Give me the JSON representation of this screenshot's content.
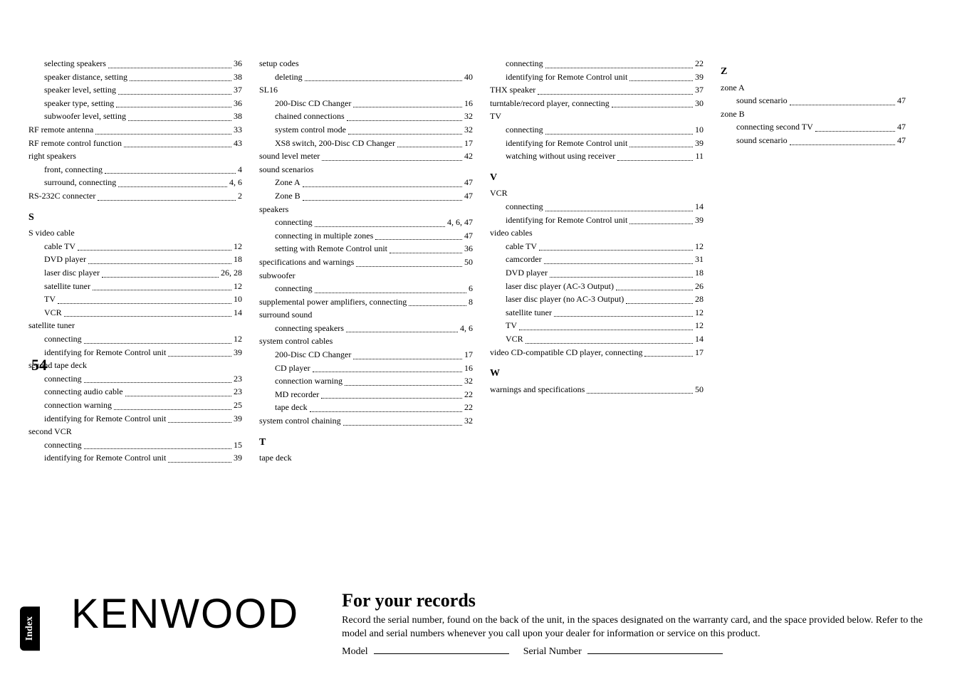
{
  "pageNumber": "54",
  "sideTab": "Index",
  "columns": [
    [
      {
        "lvl": 2,
        "text": "selecting speakers",
        "page": "36"
      },
      {
        "lvl": 2,
        "text": "speaker distance, setting",
        "page": "38"
      },
      {
        "lvl": 2,
        "text": "speaker level, setting",
        "page": "37"
      },
      {
        "lvl": 2,
        "text": "speaker type, setting",
        "page": "36"
      },
      {
        "lvl": 2,
        "text": "subwoofer level, setting",
        "page": "38"
      },
      {
        "lvl": 1,
        "text": "RF remote antenna",
        "page": "33"
      },
      {
        "lvl": 1,
        "text": "RF remote control function",
        "page": "43"
      },
      {
        "lvl": 1,
        "text": "right speakers",
        "noPage": true
      },
      {
        "lvl": 2,
        "text": "front, connecting",
        "page": "4"
      },
      {
        "lvl": 2,
        "text": "surround, connecting",
        "page": "4, 6"
      },
      {
        "lvl": 1,
        "text": "RS-232C connecter",
        "page": "2"
      },
      {
        "letter": "S"
      },
      {
        "lvl": 1,
        "text": "S video cable",
        "noPage": true
      },
      {
        "lvl": 2,
        "text": "cable TV",
        "page": "12"
      },
      {
        "lvl": 2,
        "text": "DVD player",
        "page": "18"
      },
      {
        "lvl": 2,
        "text": "laser disc player",
        "page": "26, 28"
      },
      {
        "lvl": 2,
        "text": "satellite tuner",
        "page": "12"
      },
      {
        "lvl": 2,
        "text": "TV",
        "page": "10"
      },
      {
        "lvl": 2,
        "text": "VCR",
        "page": "14"
      },
      {
        "lvl": 1,
        "text": "satellite tuner",
        "noPage": true
      },
      {
        "lvl": 2,
        "text": "connecting",
        "page": "12"
      },
      {
        "lvl": 2,
        "text": "identifying for Remote Control unit",
        "page": "39"
      },
      {
        "lvl": 1,
        "text": "second tape deck",
        "noPage": true
      },
      {
        "lvl": 2,
        "text": "connecting",
        "page": "23"
      },
      {
        "lvl": 2,
        "text": "connecting audio cable",
        "page": "23"
      },
      {
        "lvl": 2,
        "text": "connection warning",
        "page": "25"
      },
      {
        "lvl": 2,
        "text": "identifying for Remote Control unit",
        "page": "39"
      },
      {
        "lvl": 1,
        "text": "second VCR",
        "noPage": true
      },
      {
        "lvl": 2,
        "text": "connecting",
        "page": "15"
      },
      {
        "lvl": 2,
        "text": "identifying for Remote Control unit",
        "page": "39"
      }
    ],
    [
      {
        "lvl": 1,
        "text": "setup codes",
        "noPage": true
      },
      {
        "lvl": 2,
        "text": "deleting",
        "page": "40"
      },
      {
        "lvl": 1,
        "text": "SL16",
        "noPage": true
      },
      {
        "lvl": 2,
        "text": "200-Disc CD Changer",
        "page": "16"
      },
      {
        "lvl": 2,
        "text": "chained connections",
        "page": "32"
      },
      {
        "lvl": 2,
        "text": "system control mode",
        "page": "32"
      },
      {
        "lvl": 2,
        "text": "XS8 switch, 200-Disc CD Changer",
        "page": "17"
      },
      {
        "lvl": 1,
        "text": "sound level meter",
        "page": "42"
      },
      {
        "lvl": 1,
        "text": "sound scenarios",
        "noPage": true
      },
      {
        "lvl": 2,
        "text": "Zone A",
        "page": "47"
      },
      {
        "lvl": 2,
        "text": "Zone B",
        "page": "47"
      },
      {
        "lvl": 1,
        "text": "speakers",
        "noPage": true
      },
      {
        "lvl": 2,
        "text": "connecting",
        "page": "4, 6, 47"
      },
      {
        "lvl": 2,
        "text": "connecting in multiple zones",
        "page": "47"
      },
      {
        "lvl": 2,
        "text": "setting with Remote Control unit",
        "page": "36"
      },
      {
        "lvl": 1,
        "text": "specifications and warnings",
        "page": "50"
      },
      {
        "lvl": 1,
        "text": "subwoofer",
        "noPage": true
      },
      {
        "lvl": 2,
        "text": "connecting",
        "page": "6"
      },
      {
        "lvl": 1,
        "text": "supplemental power amplifiers, connecting",
        "page": "8"
      },
      {
        "lvl": 1,
        "text": "surround sound",
        "noPage": true
      },
      {
        "lvl": 2,
        "text": "connecting speakers",
        "page": "4, 6"
      },
      {
        "lvl": 1,
        "text": "system control cables",
        "noPage": true
      },
      {
        "lvl": 2,
        "text": "200-Disc CD Changer",
        "page": "17"
      },
      {
        "lvl": 2,
        "text": "CD player",
        "page": "16"
      },
      {
        "lvl": 2,
        "text": "connection warning",
        "page": "32"
      },
      {
        "lvl": 2,
        "text": "MD recorder",
        "page": "22"
      },
      {
        "lvl": 2,
        "text": "tape deck",
        "page": "22"
      },
      {
        "lvl": 1,
        "text": "system control chaining",
        "page": "32"
      },
      {
        "letter": "T"
      },
      {
        "lvl": 1,
        "text": "tape deck",
        "noPage": true
      }
    ],
    [
      {
        "lvl": 2,
        "text": "connecting",
        "page": "22"
      },
      {
        "lvl": 2,
        "text": "identifying for Remote Control unit",
        "page": "39"
      },
      {
        "lvl": 1,
        "text": "THX speaker",
        "page": "37"
      },
      {
        "lvl": 1,
        "text": "turntable/record player, connecting",
        "page": "30"
      },
      {
        "lvl": 1,
        "text": "TV",
        "noPage": true
      },
      {
        "lvl": 2,
        "text": "connecting",
        "page": "10"
      },
      {
        "lvl": 2,
        "text": "identifying for Remote Control unit",
        "page": "39"
      },
      {
        "lvl": 2,
        "text": "watching without using receiver",
        "page": "11"
      },
      {
        "letter": "V"
      },
      {
        "lvl": 1,
        "text": "VCR",
        "noPage": true
      },
      {
        "lvl": 2,
        "text": "connecting",
        "page": "14"
      },
      {
        "lvl": 2,
        "text": "identifying for Remote Control unit",
        "page": "39"
      },
      {
        "lvl": 1,
        "text": "video cables",
        "noPage": true
      },
      {
        "lvl": 2,
        "text": "cable TV",
        "page": "12"
      },
      {
        "lvl": 2,
        "text": "camcorder",
        "page": "31"
      },
      {
        "lvl": 2,
        "text": "DVD player",
        "page": "18"
      },
      {
        "lvl": 2,
        "text": "laser disc player (AC-3 Output)",
        "page": "26"
      },
      {
        "lvl": 2,
        "text": "laser disc player (no AC-3 Output)",
        "page": "28"
      },
      {
        "lvl": 2,
        "text": "satellite tuner",
        "page": "12"
      },
      {
        "lvl": 2,
        "text": "TV",
        "page": "12"
      },
      {
        "lvl": 2,
        "text": "VCR",
        "page": "14"
      },
      {
        "lvl": 1,
        "text": "video CD-compatible CD player, connecting",
        "page": "17"
      },
      {
        "letter": "W"
      },
      {
        "lvl": 1,
        "text": "warnings and specifications",
        "page": "50"
      }
    ],
    [
      {
        "letter": "Z"
      },
      {
        "lvl": 1,
        "text": "zone A",
        "noPage": true
      },
      {
        "lvl": 2,
        "text": "sound scenario",
        "page": "47"
      },
      {
        "lvl": 1,
        "text": "zone B",
        "noPage": true
      },
      {
        "lvl": 2,
        "text": "connecting second TV",
        "page": "47"
      },
      {
        "lvl": 2,
        "text": "sound scenario",
        "page": "47"
      }
    ]
  ],
  "logo": {
    "pre": "KEN",
    "post": "OOD"
  },
  "records": {
    "heading": "For your records",
    "body": "Record the serial number, found on the back of the unit, in the spaces designated on the warranty card, and the space provided below.  Refer to the model and serial numbers whenever you call upon your dealer for information or service on this product.",
    "modelLabel": "Model",
    "serialLabel": "Serial Number"
  }
}
